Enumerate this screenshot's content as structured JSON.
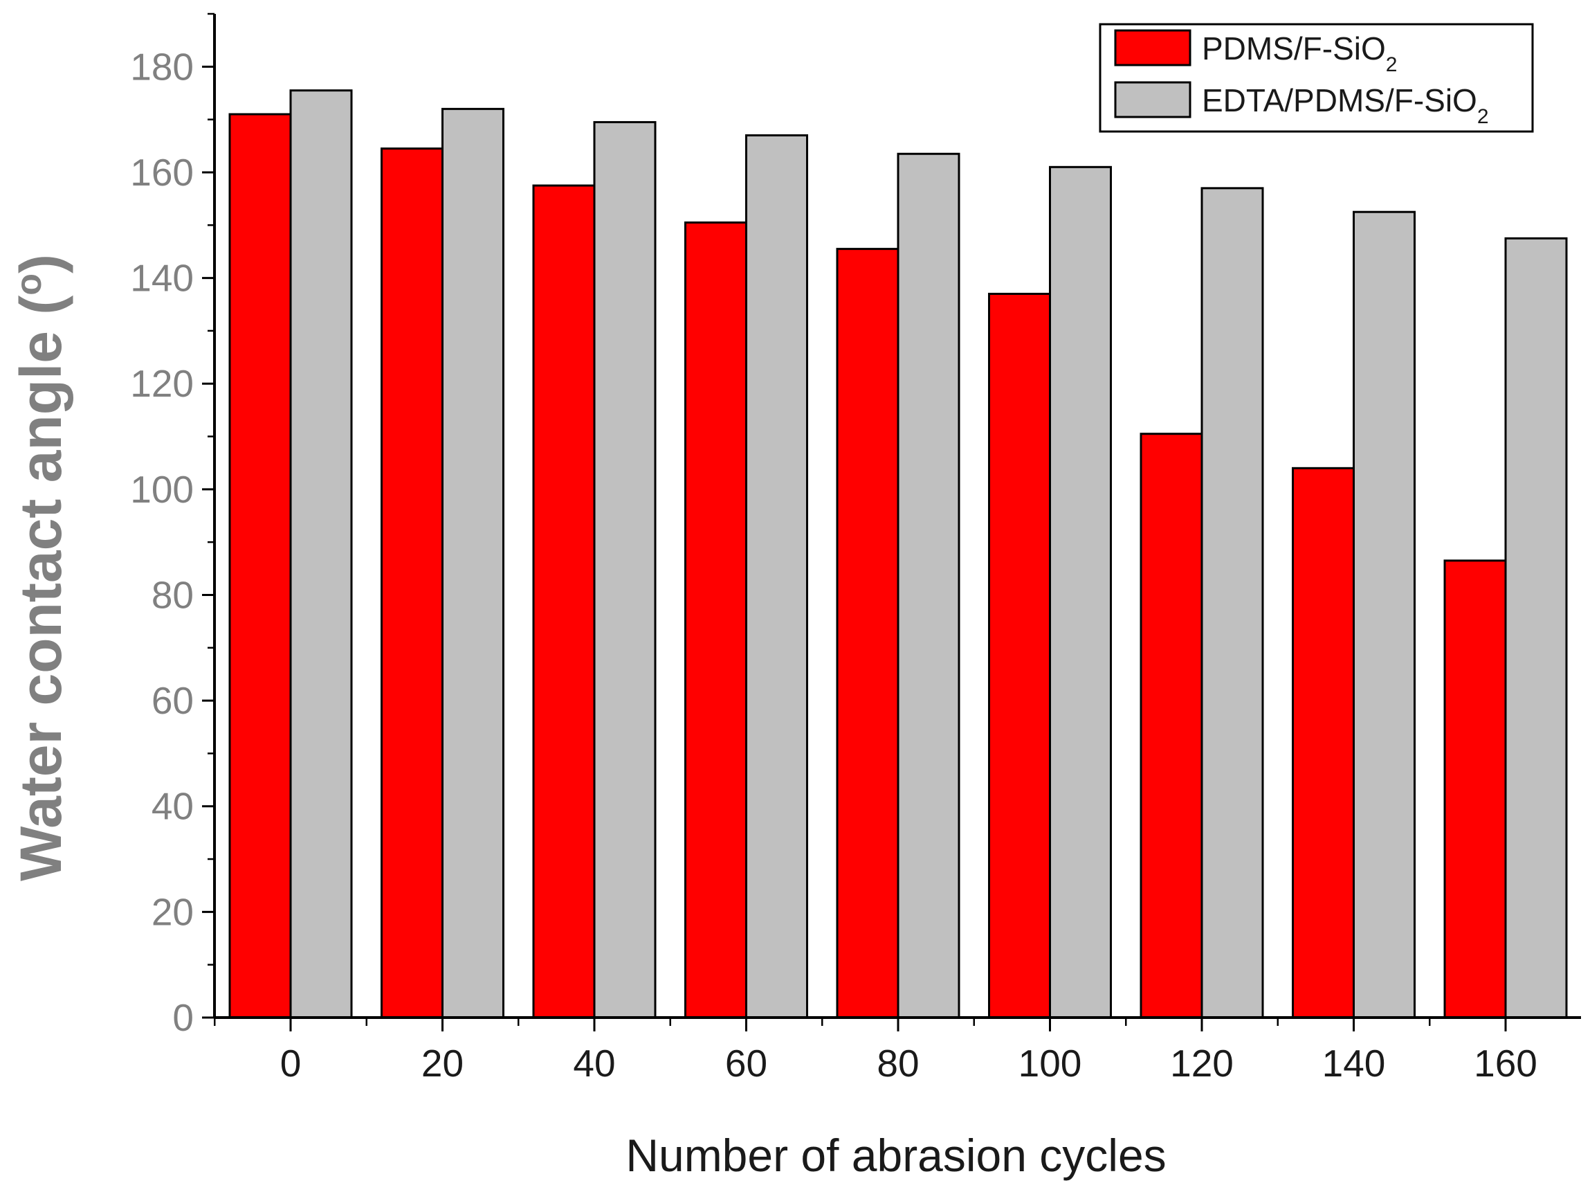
{
  "chart_data": {
    "type": "bar",
    "title": "",
    "xlabel": "Number of abrasion cycles",
    "ylabel": "Water contact angle (°)",
    "ylabel_main": "Water contact angle (",
    "ylabel_sup": "o",
    "ylabel_close": ")",
    "ylim": [
      0,
      190
    ],
    "yticks": [
      0,
      20,
      40,
      60,
      80,
      100,
      120,
      140,
      160,
      180
    ],
    "categories": [
      "0",
      "20",
      "40",
      "60",
      "80",
      "100",
      "120",
      "140",
      "160"
    ],
    "legend_position": "top-right",
    "series": [
      {
        "name": "PDMS/F-SiO2",
        "legend_main": "PDMS/F-SiO",
        "legend_sub": "2",
        "color": "#ff0000",
        "values": [
          171,
          164.5,
          157.5,
          150.5,
          145.5,
          137,
          110.5,
          104,
          86.5
        ]
      },
      {
        "name": "EDTA/PDMS/F-SiO2",
        "legend_main": "EDTA/PDMS/F-SiO",
        "legend_sub": "2",
        "color": "#c0c0c0",
        "values": [
          175.5,
          172,
          169.5,
          167,
          163.5,
          161,
          157,
          152.5,
          147.5
        ]
      }
    ]
  }
}
